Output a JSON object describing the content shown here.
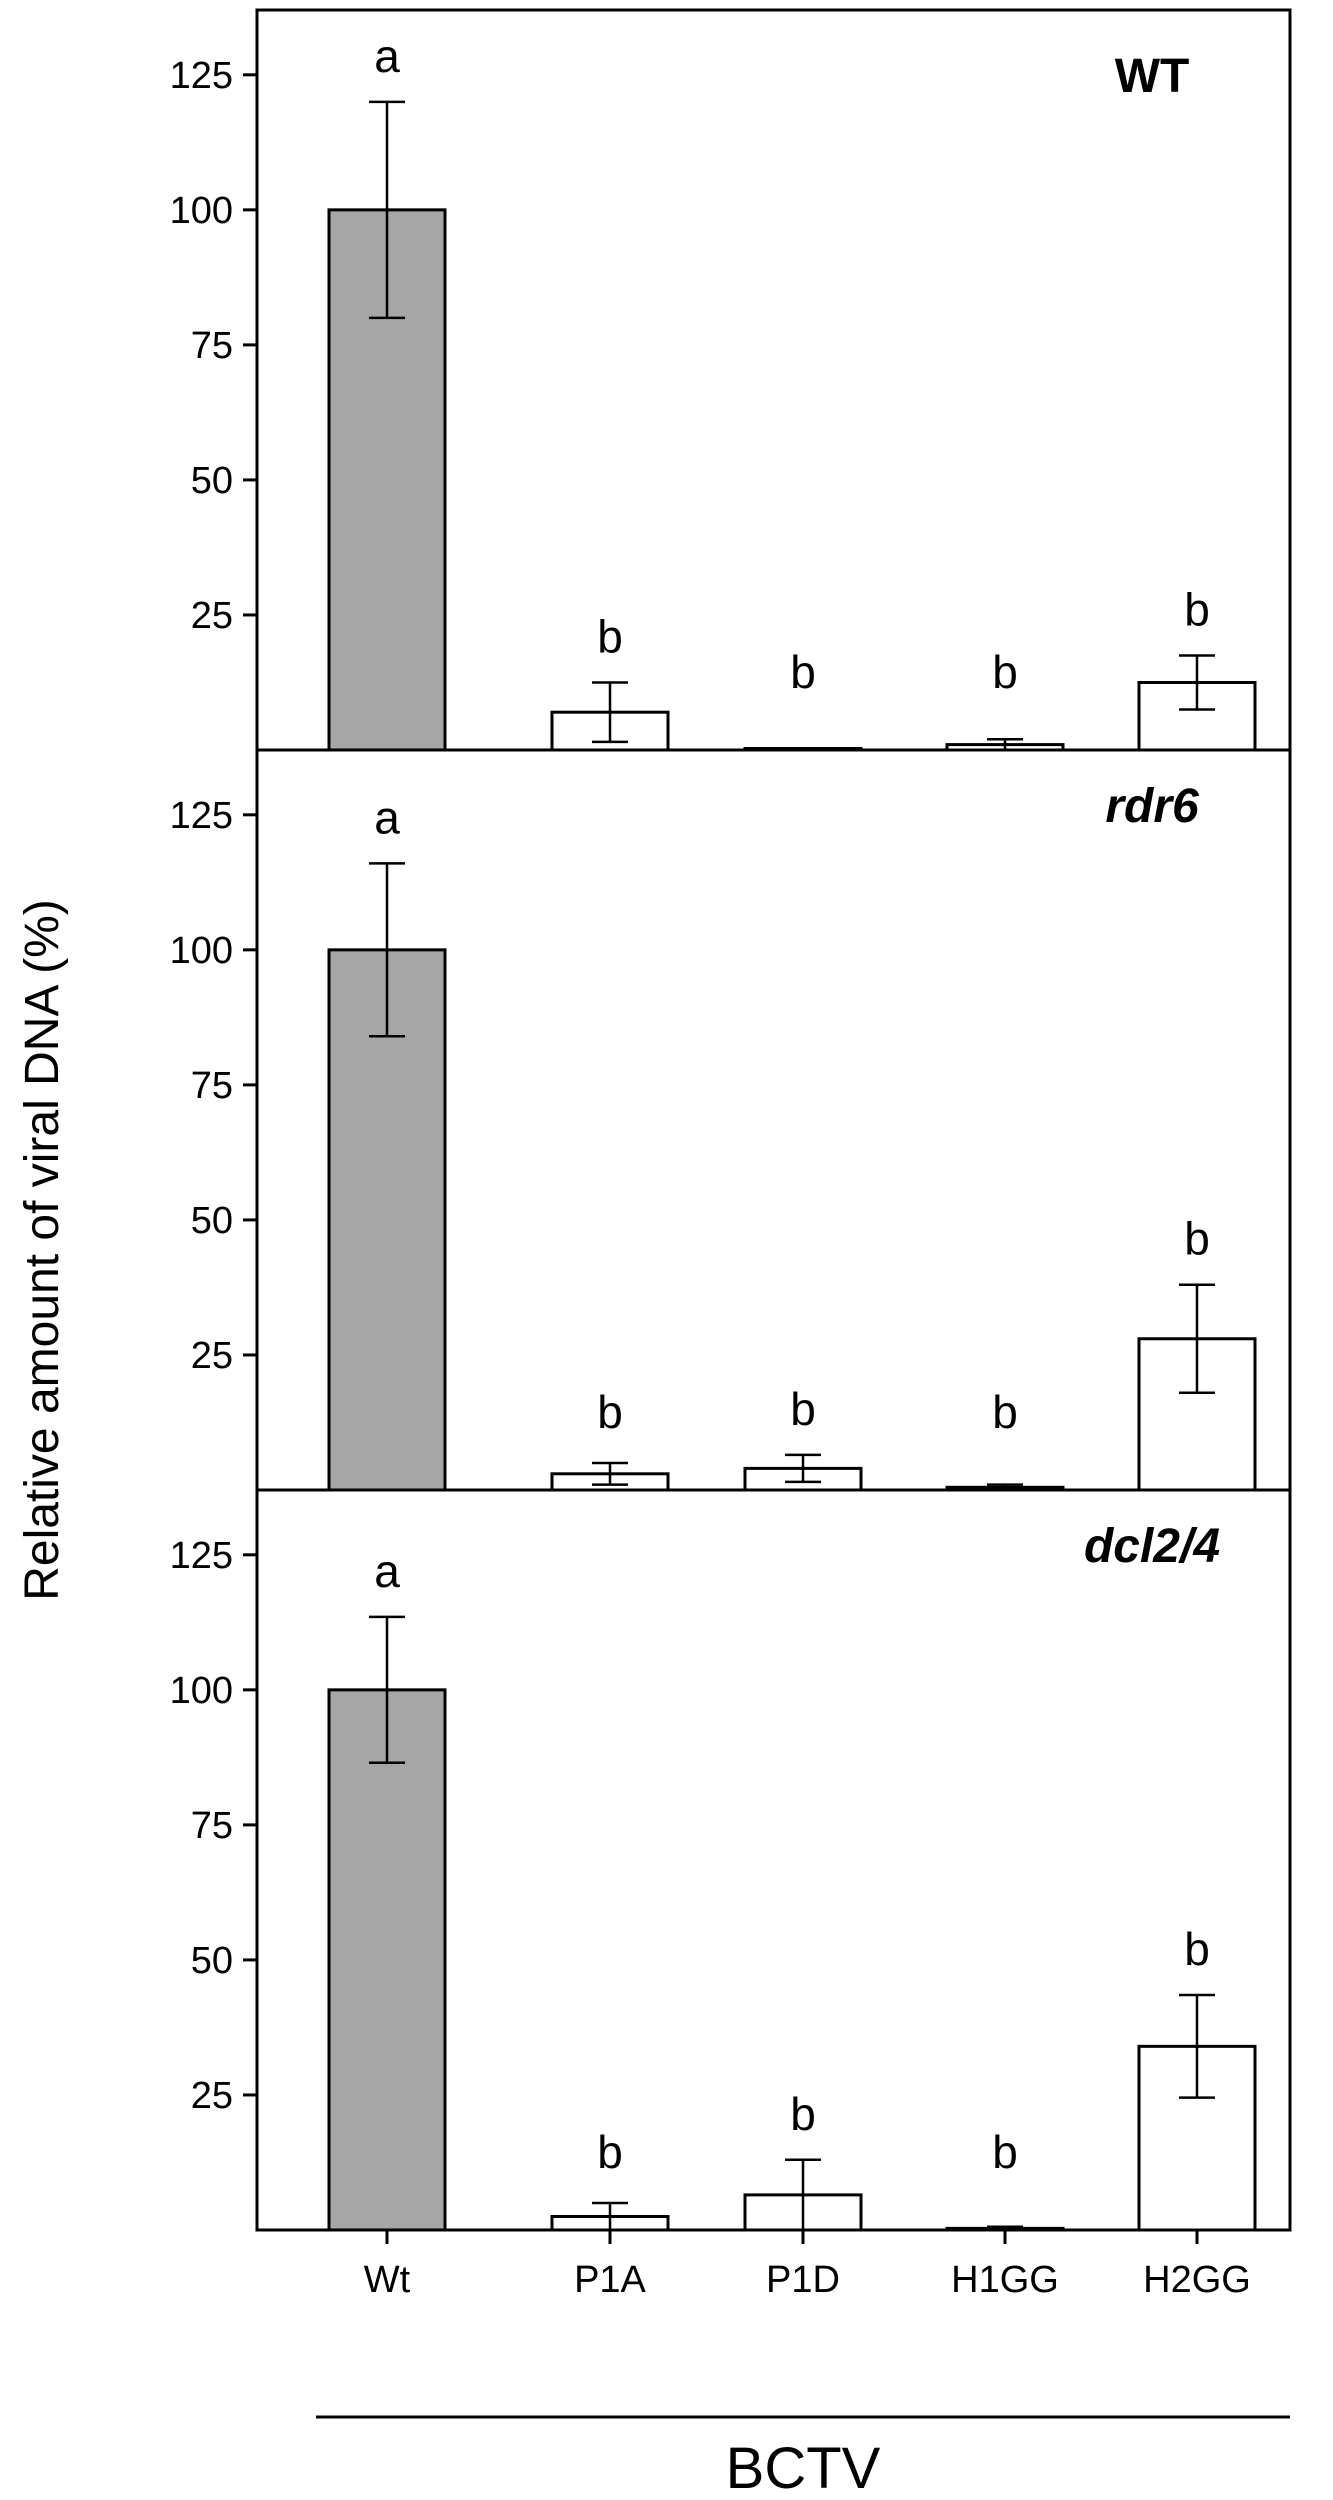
{
  "chart_data": {
    "type": "bar",
    "ylabel": "Relative amount of viral DNA (%)",
    "xlabel": "BCTV",
    "categories": [
      "Wt",
      "P1A",
      "P1D",
      "H1GG",
      "H2GG"
    ],
    "yticks": [
      25,
      50,
      75,
      100,
      125
    ],
    "ylim": [
      0,
      137
    ],
    "grid": false,
    "colors": {
      "wt_bar": "#a6a6a6",
      "mutant_bar": "#ffffff",
      "outline": "#000000"
    },
    "panels": [
      {
        "title": "WT",
        "italic": false,
        "values": [
          100,
          7,
          0,
          1,
          12.5
        ],
        "errors": [
          20,
          5.5,
          0,
          1,
          5
        ],
        "significance": [
          "a",
          "b",
          "b",
          "b",
          "b"
        ]
      },
      {
        "title": "rdr6",
        "italic": true,
        "values": [
          100,
          3,
          4,
          0.5,
          28
        ],
        "errors": [
          16,
          2,
          2.5,
          0.5,
          10
        ],
        "significance": [
          "a",
          "b",
          "b",
          "b",
          "b"
        ]
      },
      {
        "title": "dcl2/4",
        "italic": true,
        "values": [
          100,
          2.5,
          6.5,
          0.3,
          34
        ],
        "errors": [
          13.5,
          2.5,
          6.5,
          0.3,
          9.5
        ],
        "significance": [
          "a",
          "b",
          "b",
          "b",
          "b"
        ]
      }
    ]
  }
}
